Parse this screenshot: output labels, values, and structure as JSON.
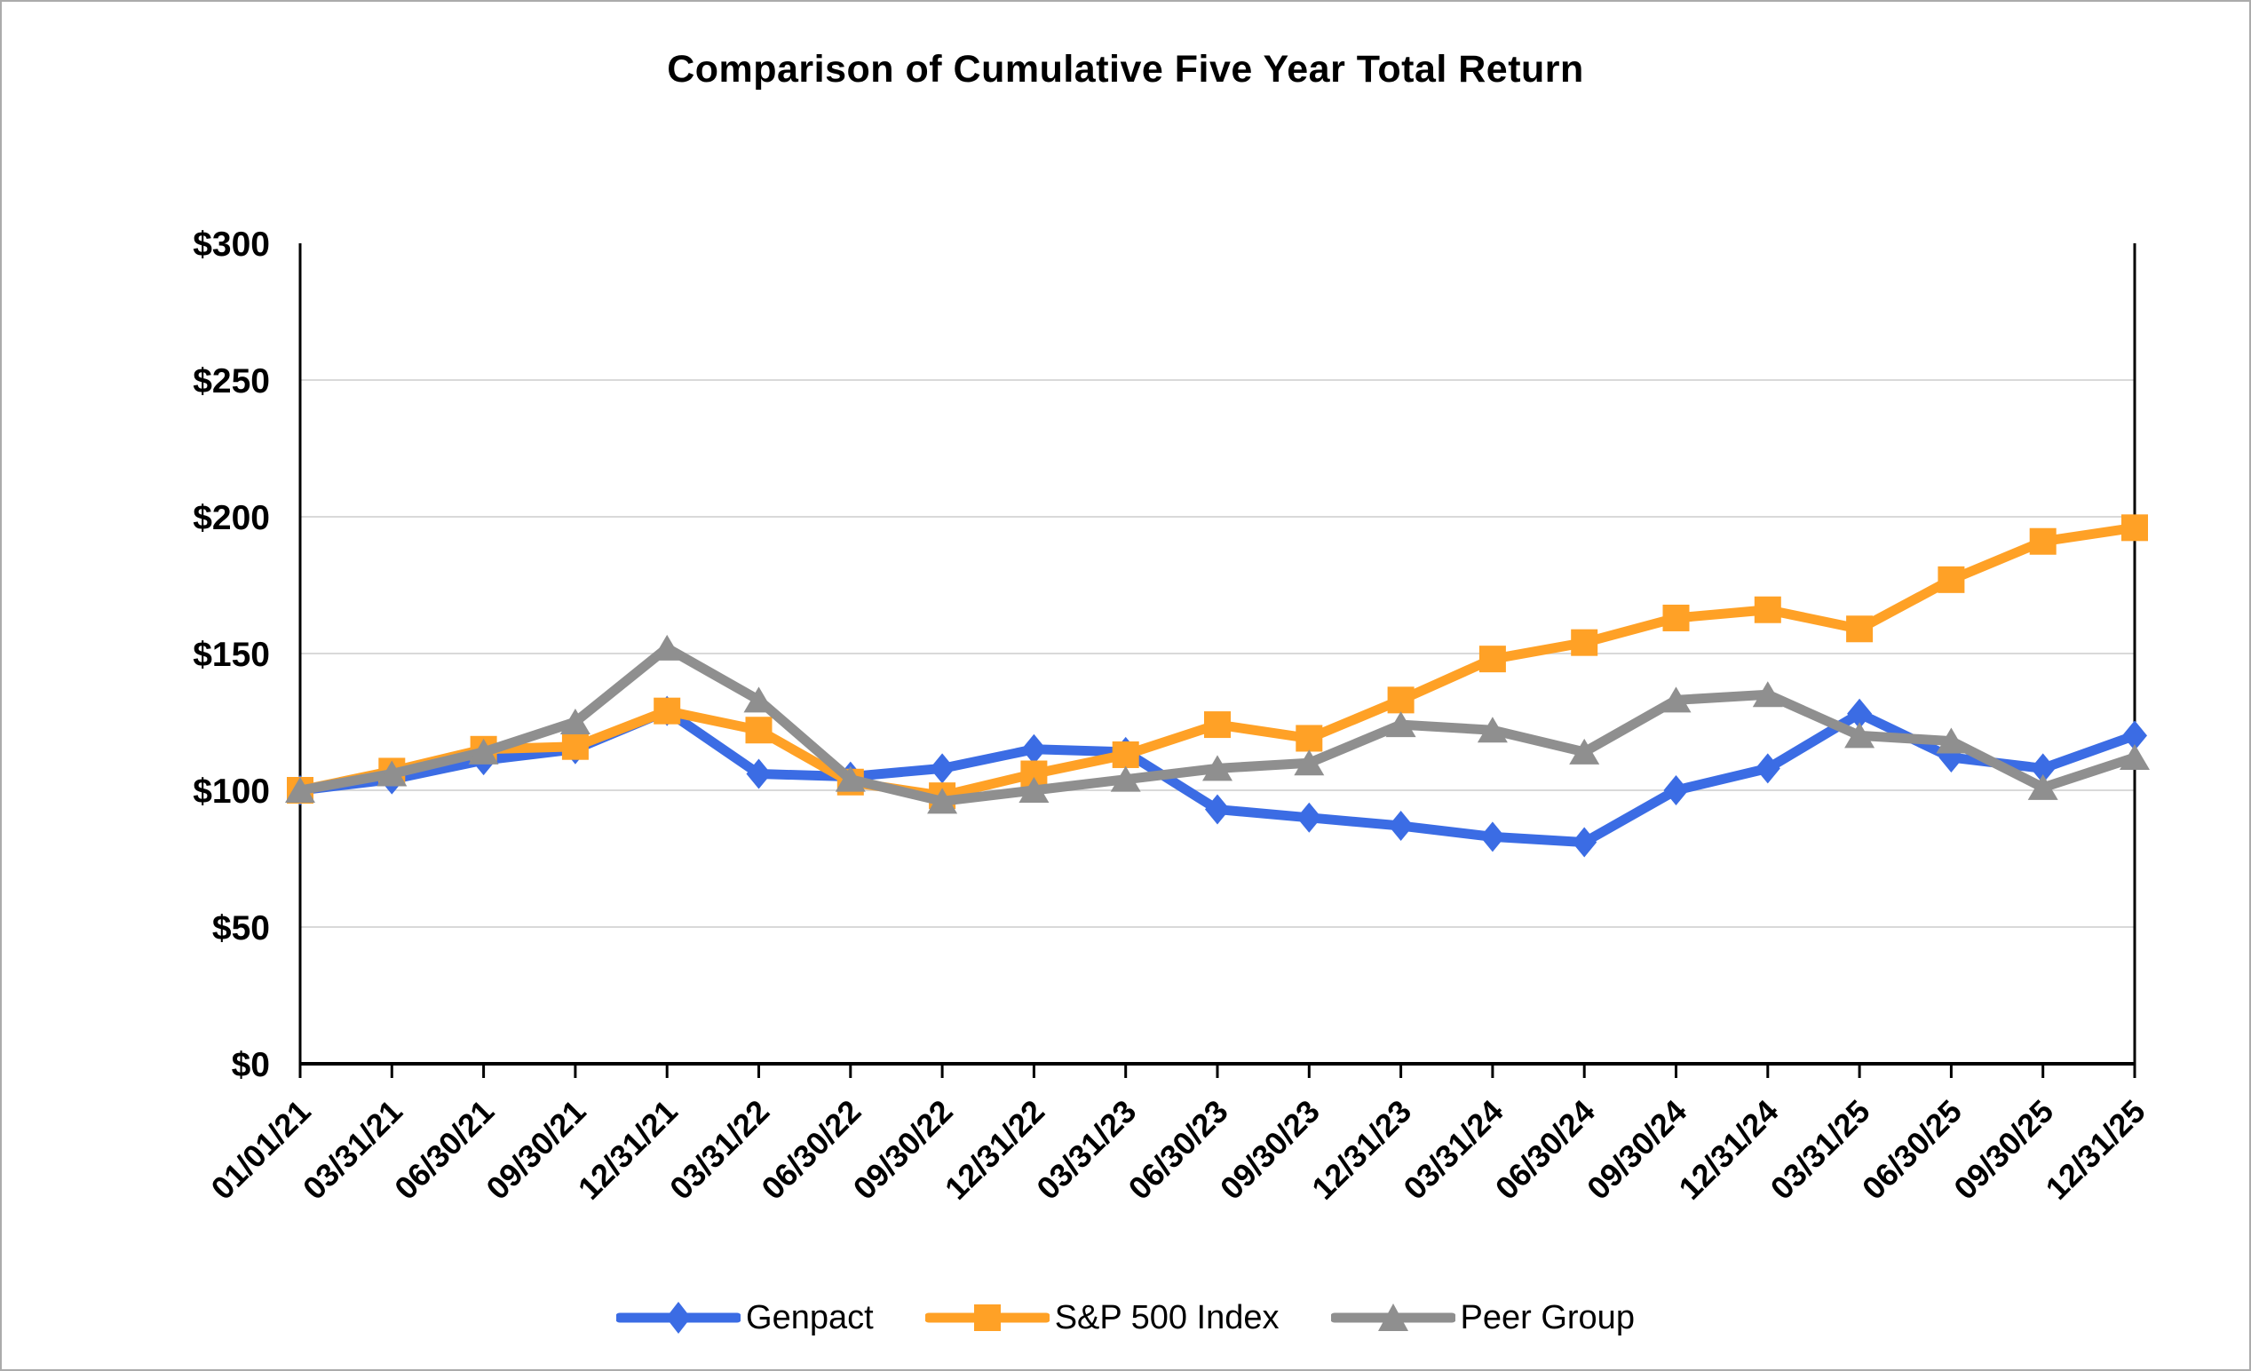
{
  "title": "Comparison of Cumulative Five Year Total Return",
  "colors": {
    "genpact_blue": "#3B6CE4",
    "sp500_orange": "#FFA126",
    "peer_gray": "#8F8F8F",
    "gridline": "#D9D9D9",
    "axis": "#000000",
    "page_border": "#ABABAB"
  },
  "chart_data": {
    "type": "line",
    "title": "Comparison of Cumulative Five Year Total Return",
    "xlabel": "",
    "ylabel": "",
    "ylim": [
      0,
      300
    ],
    "y_tick_step": 50,
    "y_ticks": [
      "$0",
      "$50",
      "$100",
      "$150",
      "$200",
      "$250",
      "$300"
    ],
    "grid": true,
    "legend_position": "bottom",
    "categories": [
      "01/01/21",
      "03/31/21",
      "06/30/21",
      "09/30/21",
      "12/31/21",
      "03/31/22",
      "06/30/22",
      "09/30/22",
      "12/31/22",
      "03/31/23",
      "06/30/23",
      "09/30/23",
      "12/31/23",
      "03/31/24",
      "06/30/24",
      "09/30/24",
      "12/31/24",
      "03/31/25",
      "06/30/25",
      "09/30/25",
      "12/31/25"
    ],
    "series": [
      {
        "name": "Genpact",
        "color": "#3B6CE4",
        "marker": "diamond",
        "values": [
          100,
          104,
          111,
          115,
          129,
          106,
          105,
          108,
          115,
          114,
          93,
          90,
          87,
          83,
          81,
          100,
          108,
          128,
          112,
          108,
          120
        ]
      },
      {
        "name": "S&P 500 Index",
        "color": "#FFA126",
        "marker": "square",
        "values": [
          100,
          107,
          115,
          116,
          129,
          122,
          103,
          98,
          106,
          113,
          124,
          119,
          133,
          148,
          154,
          163,
          166,
          159,
          177,
          191,
          196
        ]
      },
      {
        "name": "Peer Group",
        "color": "#8F8F8F",
        "marker": "triangle",
        "values": [
          100,
          106,
          114,
          125,
          152,
          133,
          104,
          96,
          100,
          104,
          108,
          110,
          124,
          122,
          114,
          133,
          135,
          120,
          118,
          101,
          112
        ]
      }
    ]
  }
}
